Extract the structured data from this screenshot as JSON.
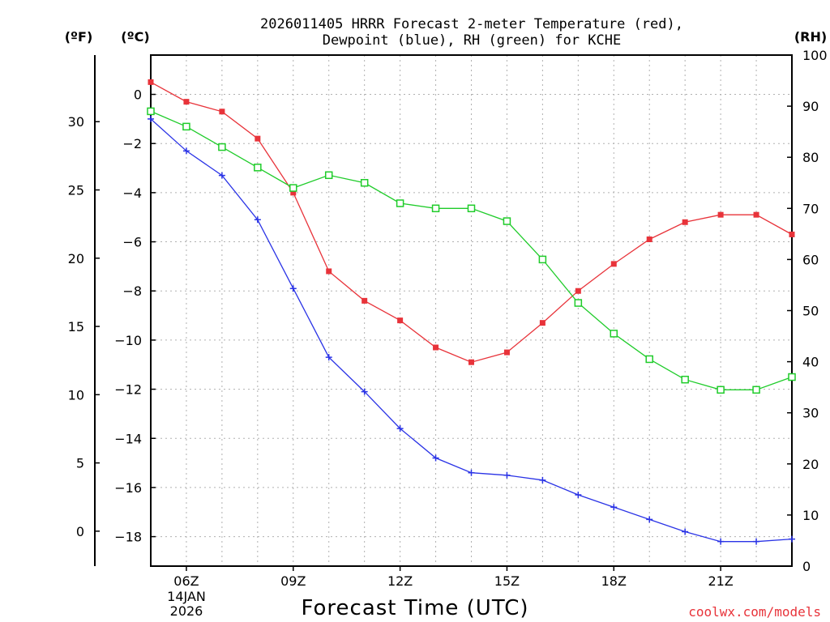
{
  "chart_data": {
    "type": "line",
    "title_line1": "2026011405 HRRR Forecast 2-meter Temperature (red),",
    "title_line2": "Dewpoint (blue), RH (green) for KCHE",
    "xlabel": "Forecast Time (UTC)",
    "credit": "coolwx.com/models",
    "date_line1": "14JAN",
    "date_line2": "2026",
    "unit_left_f": "(ºF)",
    "unit_left_c": "(ºC)",
    "unit_right": "(RH)",
    "x_hours": [
      5,
      6,
      7,
      8,
      9,
      10,
      11,
      12,
      13,
      14,
      15,
      16,
      17,
      18,
      19,
      20,
      21,
      22,
      23
    ],
    "x_ticks": [
      {
        "hour": 6,
        "label": "06Z"
      },
      {
        "hour": 9,
        "label": "09Z"
      },
      {
        "hour": 12,
        "label": "12Z"
      },
      {
        "hour": 15,
        "label": "15Z"
      },
      {
        "hour": 18,
        "label": "18Z"
      },
      {
        "hour": 21,
        "label": "21Z"
      }
    ],
    "xlim": [
      5,
      23
    ],
    "y_celsius": {
      "lim": [
        -19.2,
        1.6
      ],
      "ticks": [
        0,
        -2,
        -4,
        -6,
        -8,
        -10,
        -12,
        -14,
        -16,
        -18
      ],
      "labels": [
        "0",
        "−2",
        "−4",
        "−6",
        "−8",
        "−10",
        "−12",
        "−14",
        "−16",
        "−18"
      ]
    },
    "y_fahrenheit": {
      "ticks": [
        30,
        25,
        20,
        15,
        10,
        5,
        0
      ],
      "labels": [
        "30",
        "25",
        "20",
        "15",
        "10",
        "5",
        "0"
      ]
    },
    "y_rh": {
      "lim": [
        0,
        100
      ],
      "ticks": [
        0,
        10,
        20,
        30,
        40,
        50,
        60,
        70,
        80,
        90,
        100
      ],
      "labels": [
        "0",
        "10",
        "20",
        "30",
        "40",
        "50",
        "60",
        "70",
        "80",
        "90",
        "100"
      ]
    },
    "series": [
      {
        "name": "Temperature",
        "color": "#e8333a",
        "marker": "filled-square",
        "axis": "celsius",
        "values": [
          0.5,
          -0.3,
          -0.7,
          -1.8,
          -4.0,
          -7.2,
          -8.4,
          -9.2,
          -10.3,
          -10.9,
          -10.5,
          -9.3,
          -8.0,
          -6.9,
          -5.9,
          -5.2,
          -4.9,
          -4.9,
          -5.7
        ]
      },
      {
        "name": "Dewpoint",
        "color": "#2a33e6",
        "marker": "plus",
        "axis": "celsius",
        "values": [
          -1.0,
          -2.3,
          -3.3,
          -5.1,
          -7.9,
          -10.7,
          -12.1,
          -13.6,
          -14.8,
          -15.4,
          -15.5,
          -15.7,
          -16.3,
          -16.8,
          -17.3,
          -17.8,
          -18.2,
          -18.2,
          -18.1
        ]
      },
      {
        "name": "RH",
        "color": "#1fcc2a",
        "marker": "open-square",
        "axis": "rh",
        "values": [
          89,
          86,
          82,
          78,
          74,
          76.5,
          75,
          71,
          70,
          70,
          67.5,
          60,
          51.5,
          45.5,
          40.5,
          36.5,
          34.5,
          34.5,
          37
        ]
      }
    ]
  }
}
